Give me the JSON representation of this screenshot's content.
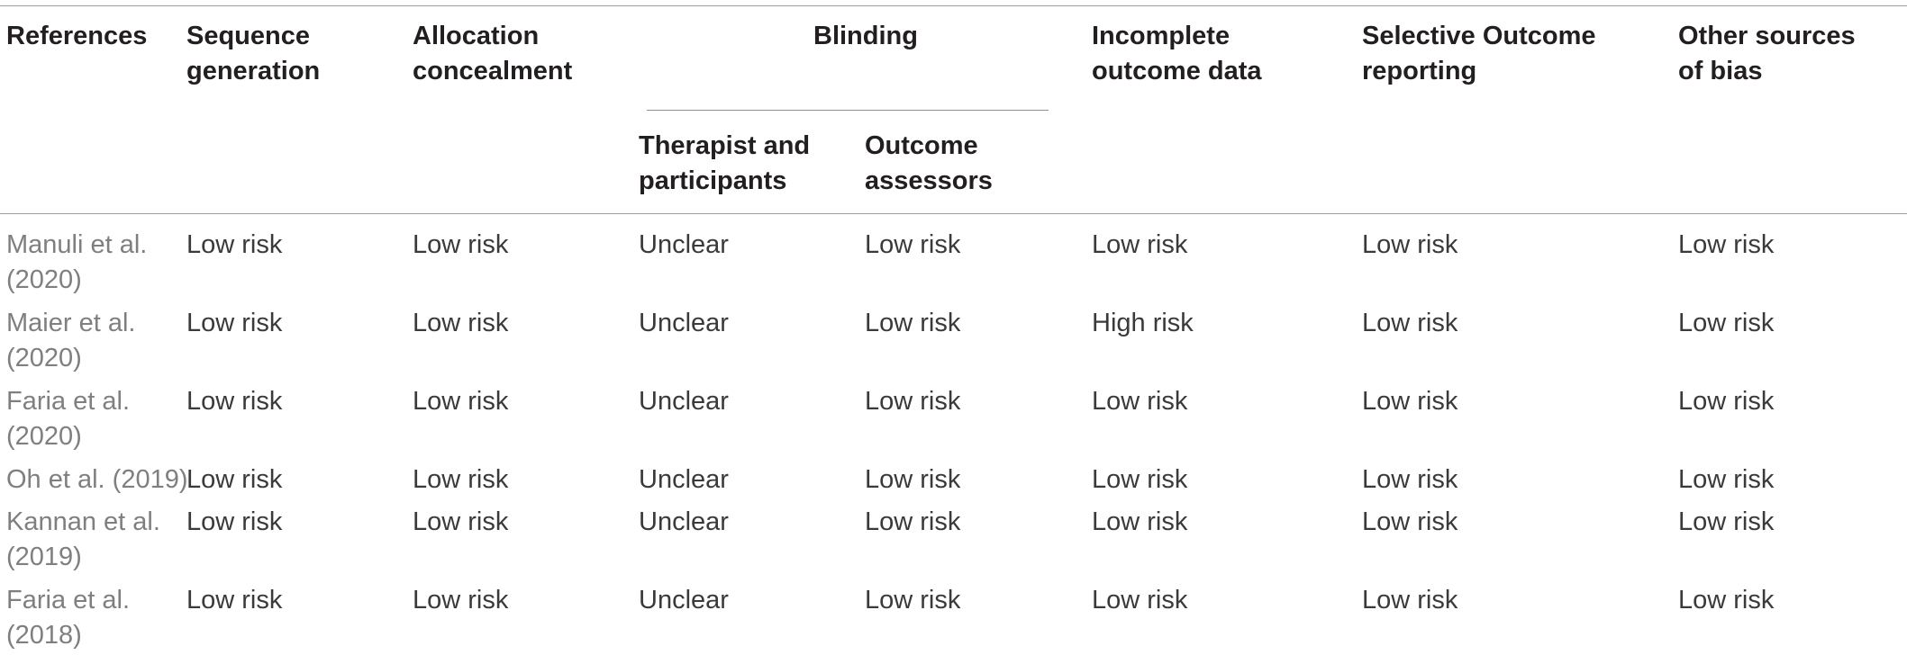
{
  "table": {
    "headers": {
      "references": [
        "References"
      ],
      "sequence_generation": [
        "Sequence",
        "generation"
      ],
      "allocation_concealment": [
        "Allocation",
        "concealment"
      ],
      "blinding": "Blinding",
      "therapist_participants": [
        "Therapist and",
        "participants"
      ],
      "outcome_assessors": [
        "Outcome",
        "assessors"
      ],
      "incomplete_outcome_data": [
        "Incomplete",
        "outcome data"
      ],
      "selective_outcome_reporting": [
        "Selective Outcome",
        "reporting"
      ],
      "other_sources_of_bias": [
        "Other sources",
        "of bias"
      ]
    },
    "rows": [
      {
        "ref": [
          "Manuli et al.",
          "(2020)"
        ],
        "cells": [
          "Low risk",
          "Low risk",
          "Unclear",
          "Low risk",
          "Low risk",
          "Low risk",
          "Low risk"
        ]
      },
      {
        "ref": [
          "Maier et al.",
          "(2020)"
        ],
        "cells": [
          "Low risk",
          "Low risk",
          "Unclear",
          "Low risk",
          "High risk",
          "Low risk",
          "Low risk"
        ]
      },
      {
        "ref": [
          "Faria et al.",
          "(2020)"
        ],
        "cells": [
          "Low risk",
          "Low risk",
          "Unclear",
          "Low risk",
          "Low risk",
          "Low risk",
          "Low risk"
        ]
      },
      {
        "ref": [
          "Oh et al. (2019)"
        ],
        "cells": [
          "Low risk",
          "Low risk",
          "Unclear",
          "Low risk",
          "Low risk",
          "Low risk",
          "Low risk"
        ]
      },
      {
        "ref": [
          "Kannan et al.",
          "(2019)"
        ],
        "cells": [
          "Low risk",
          "Low risk",
          "Unclear",
          "Low risk",
          "Low risk",
          "Low risk",
          "Low risk"
        ]
      },
      {
        "ref": [
          "Faria et al.",
          "(2018)"
        ],
        "cells": [
          "Low risk",
          "Low risk",
          "Unclear",
          "Low risk",
          "Low risk",
          "Low risk",
          "Low risk"
        ]
      }
    ]
  }
}
